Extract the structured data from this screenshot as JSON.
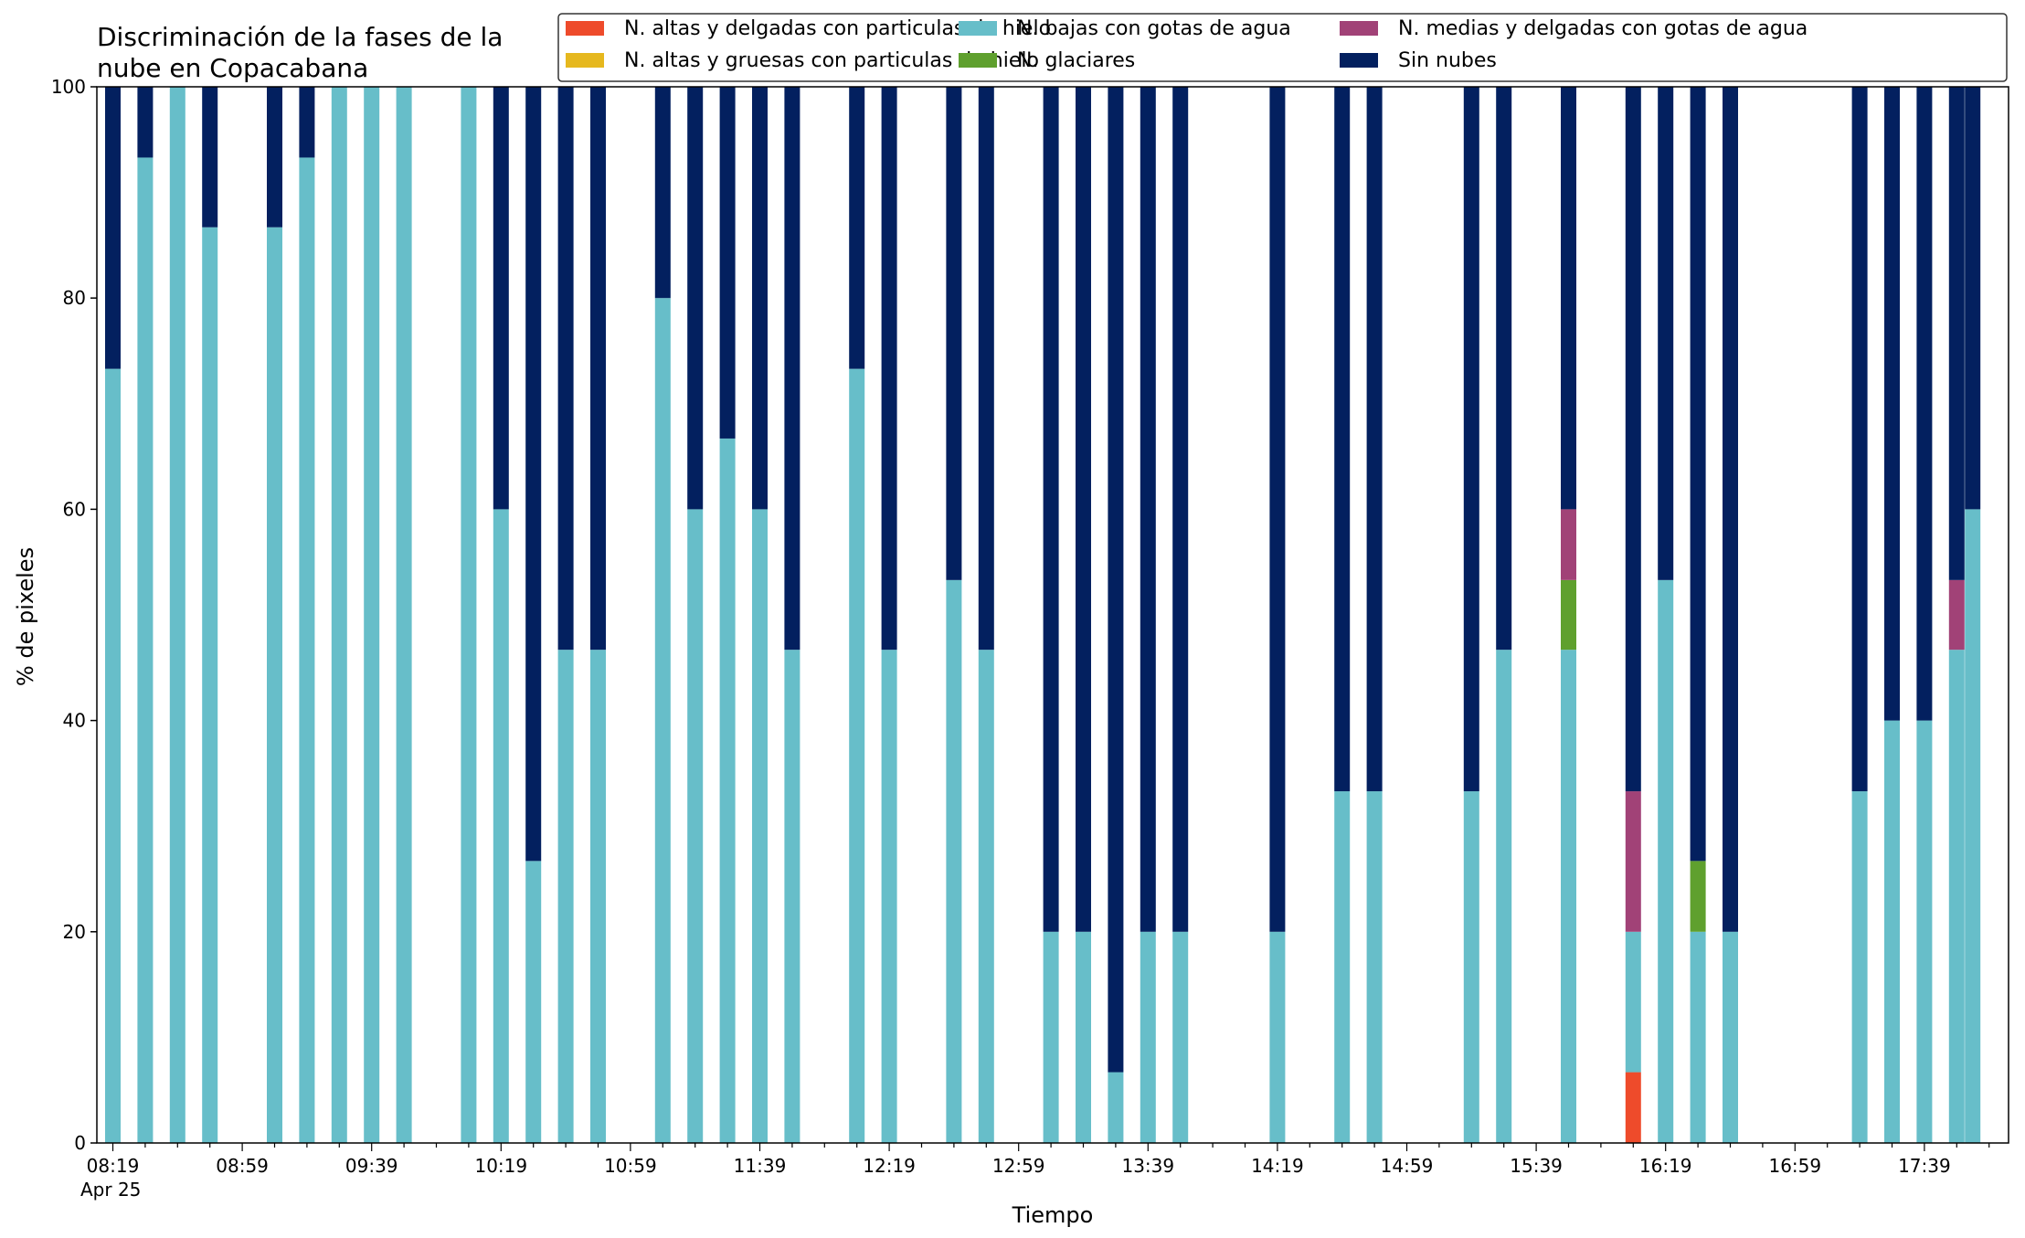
{
  "chart_data": {
    "type": "bar",
    "stacked": true,
    "title_lines": [
      "Discriminación de la fases de la",
      "nube en Copacabana"
    ],
    "xlabel": "Tiempo",
    "ylabel": "% de pixeles",
    "ylim": [
      0,
      100
    ],
    "yticks": [
      0,
      20,
      40,
      60,
      80,
      100
    ],
    "grid": false,
    "legend_position": "top-right",
    "x_major_ticks": [
      "08:19",
      "08:59",
      "09:39",
      "10:19",
      "10:59",
      "11:39",
      "12:19",
      "12:59",
      "13:39",
      "14:19",
      "14:59",
      "15:39",
      "16:19",
      "16:59",
      "17:39"
    ],
    "x_date_label": "Apr 25",
    "categories": [
      "08:19",
      "08:29",
      "08:39",
      "08:49",
      "08:59",
      "09:09",
      "09:19",
      "09:29",
      "09:39",
      "09:49",
      "09:59",
      "10:09",
      "10:19",
      "10:29",
      "10:39",
      "10:49",
      "10:59",
      "11:09",
      "11:19",
      "11:29",
      "11:39",
      "11:49",
      "11:59",
      "12:09",
      "12:19",
      "12:29",
      "12:39",
      "12:49",
      "12:59",
      "13:09",
      "13:19",
      "13:29",
      "13:39",
      "13:49",
      "13:59",
      "14:09",
      "14:19",
      "14:29",
      "14:39",
      "14:49",
      "14:59",
      "15:09",
      "15:19",
      "15:29",
      "15:39",
      "15:49",
      "15:59",
      "16:09",
      "16:19",
      "16:29",
      "16:39",
      "16:49",
      "16:59",
      "17:09",
      "17:19",
      "17:29",
      "17:39",
      "17:49"
    ],
    "series": [
      {
        "name": "N. altas y delgadas con particulas de hielo",
        "color": "#ee4b2b",
        "values": [
          0,
          0,
          0,
          0,
          null,
          0,
          0,
          0,
          0,
          0,
          null,
          0,
          0,
          0,
          0,
          0,
          null,
          0,
          0,
          0,
          0,
          0,
          null,
          0,
          0,
          null,
          0,
          0,
          null,
          0,
          0,
          0,
          0,
          0,
          null,
          null,
          0,
          null,
          0,
          0,
          null,
          null,
          0,
          0,
          null,
          0,
          null,
          6.7,
          0,
          0,
          0,
          null,
          null,
          null,
          0,
          0,
          0,
          0
        ]
      },
      {
        "name": "N. altas y gruesas con particulas de hielo",
        "color": "#e6b81e",
        "values": [
          0,
          0,
          0,
          0,
          null,
          0,
          0,
          0,
          0,
          0,
          null,
          0,
          0,
          0,
          0,
          0,
          null,
          0,
          0,
          0,
          0,
          0,
          null,
          0,
          0,
          null,
          0,
          0,
          null,
          0,
          0,
          0,
          0,
          0,
          null,
          null,
          0,
          null,
          0,
          0,
          null,
          null,
          0,
          0,
          null,
          0,
          null,
          0,
          0,
          0,
          0,
          null,
          null,
          null,
          0,
          0,
          0,
          0
        ]
      },
      {
        "name": "N. bajas con gotas de agua",
        "color": "#67bec9",
        "values": [
          73.3,
          93.3,
          100,
          86.7,
          null,
          86.7,
          93.3,
          100,
          100,
          100,
          null,
          100,
          60,
          26.7,
          46.7,
          46.7,
          null,
          80,
          60,
          66.7,
          60,
          46.7,
          null,
          73.3,
          46.7,
          null,
          53.3,
          46.7,
          null,
          20,
          20,
          6.7,
          20,
          20,
          null,
          null,
          20,
          null,
          33.3,
          33.3,
          null,
          null,
          33.3,
          46.7,
          null,
          46.7,
          null,
          13.3,
          53.3,
          20,
          20,
          null,
          null,
          null,
          33.3,
          40,
          40,
          46.7
        ]
      },
      {
        "name": "N. glaciares",
        "color": "#5fa02e",
        "values": [
          0,
          0,
          0,
          0,
          null,
          0,
          0,
          0,
          0,
          0,
          null,
          0,
          0,
          0,
          0,
          0,
          null,
          0,
          0,
          0,
          0,
          0,
          null,
          0,
          0,
          null,
          0,
          0,
          null,
          0,
          0,
          0,
          0,
          0,
          null,
          null,
          0,
          null,
          0,
          0,
          null,
          null,
          0,
          0,
          null,
          6.6,
          null,
          0,
          0,
          6.7,
          0,
          null,
          null,
          null,
          0,
          0,
          0,
          0
        ]
      },
      {
        "name": "N. medias y delgadas con gotas de agua",
        "color": "#a14277",
        "values": [
          0,
          0,
          0,
          0,
          null,
          0,
          0,
          0,
          0,
          0,
          null,
          0,
          0,
          0,
          0,
          0,
          null,
          0,
          0,
          0,
          0,
          0,
          null,
          0,
          0,
          null,
          0,
          0,
          null,
          0,
          0,
          0,
          0,
          0,
          null,
          null,
          0,
          null,
          0,
          0,
          null,
          null,
          0,
          0,
          null,
          6.7,
          null,
          13.3,
          0,
          0,
          0,
          null,
          null,
          null,
          0,
          0,
          0,
          6.6
        ]
      },
      {
        "name": "Sin nubes",
        "color": "#03205f",
        "values": [
          26.7,
          6.7,
          0,
          13.3,
          null,
          13.3,
          6.7,
          0,
          0,
          0,
          null,
          0,
          40,
          73.3,
          53.3,
          53.3,
          null,
          20,
          40,
          33.3,
          40,
          53.3,
          null,
          26.7,
          53.3,
          null,
          46.7,
          53.3,
          null,
          80,
          80,
          93.3,
          80,
          80,
          null,
          null,
          80,
          null,
          66.7,
          66.7,
          null,
          null,
          66.7,
          53.3,
          null,
          40,
          null,
          66.7,
          46.7,
          73.3,
          80,
          null,
          null,
          null,
          66.7,
          60,
          60,
          46.7
        ]
      }
    ],
    "extra_bar_after_last": {
      "category": "17:49+",
      "values": [
        0,
        0,
        60,
        0,
        0,
        40
      ]
    }
  }
}
